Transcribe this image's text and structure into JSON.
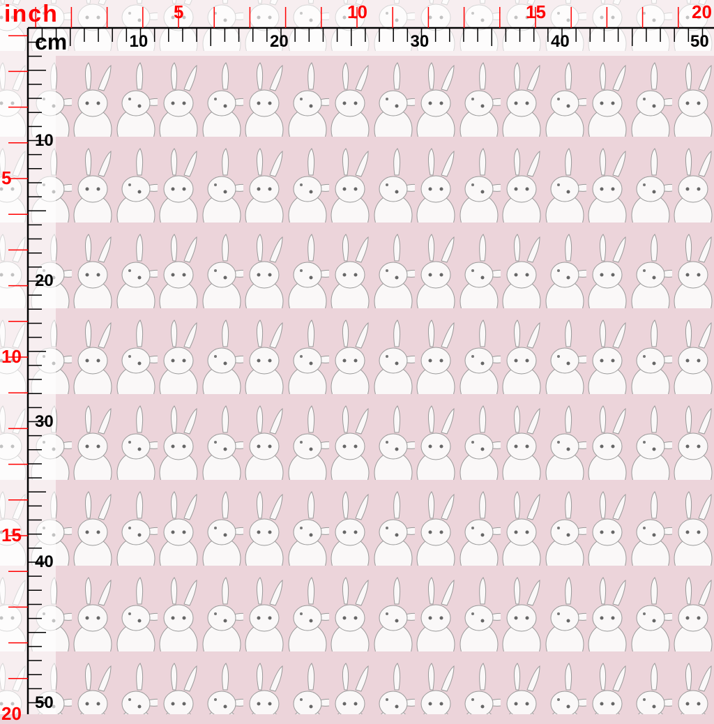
{
  "fabric": {
    "background_color": "#ecd4da",
    "motif": "white bunnies rows",
    "motif_color": "#f8f6f6",
    "outline_color": "#8a8a8a"
  },
  "ruler": {
    "inch_unit": "inch",
    "cm_unit": "cm",
    "inch_color": "#ff0000",
    "cm_color": "#000000",
    "inch_labels": [
      "5",
      "10",
      "15",
      "20"
    ],
    "cm_labels": [
      "10",
      "20",
      "30",
      "40",
      "50"
    ]
  }
}
